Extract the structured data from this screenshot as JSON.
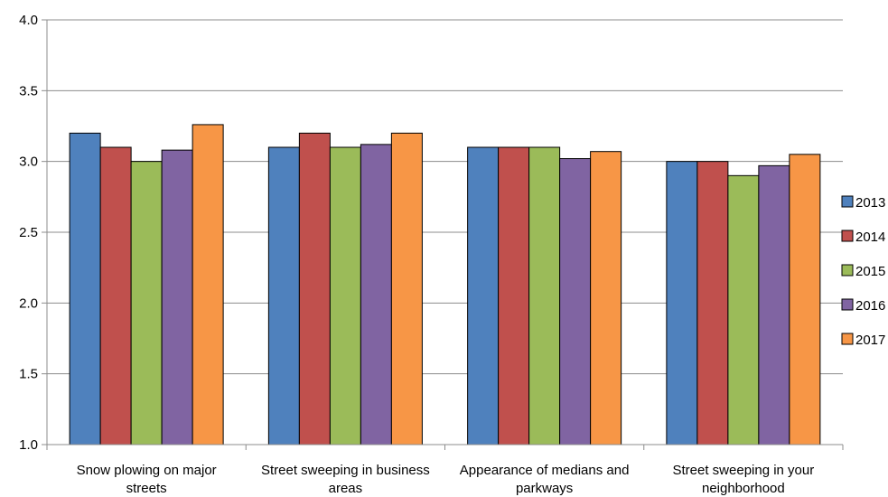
{
  "chart_data": {
    "type": "bar",
    "title": "",
    "xlabel": "",
    "ylabel": "",
    "ylim": [
      1.0,
      4.0
    ],
    "yticks": [
      "1.0",
      "1.5",
      "2.0",
      "2.5",
      "3.0",
      "3.5",
      "4.0"
    ],
    "grid": true,
    "legend_position": "right",
    "categories": [
      [
        "Snow plowing on major",
        "streets"
      ],
      [
        "Street sweeping in business",
        "areas"
      ],
      [
        "Appearance of medians and",
        "parkways"
      ],
      [
        "Street sweeping in your",
        "neighborhood"
      ]
    ],
    "series": [
      {
        "name": "2013",
        "color": "#4f81bd",
        "values": [
          3.2,
          3.1,
          3.1,
          3.0
        ]
      },
      {
        "name": "2014",
        "color": "#c0504d",
        "values": [
          3.1,
          3.2,
          3.1,
          3.0
        ]
      },
      {
        "name": "2015",
        "color": "#9bbb59",
        "values": [
          3.0,
          3.1,
          3.1,
          2.9
        ]
      },
      {
        "name": "2016",
        "color": "#8064a2",
        "values": [
          3.08,
          3.12,
          3.02,
          2.97
        ]
      },
      {
        "name": "2017",
        "color": "#f79646",
        "values": [
          3.26,
          3.2,
          3.07,
          3.05
        ]
      }
    ]
  }
}
